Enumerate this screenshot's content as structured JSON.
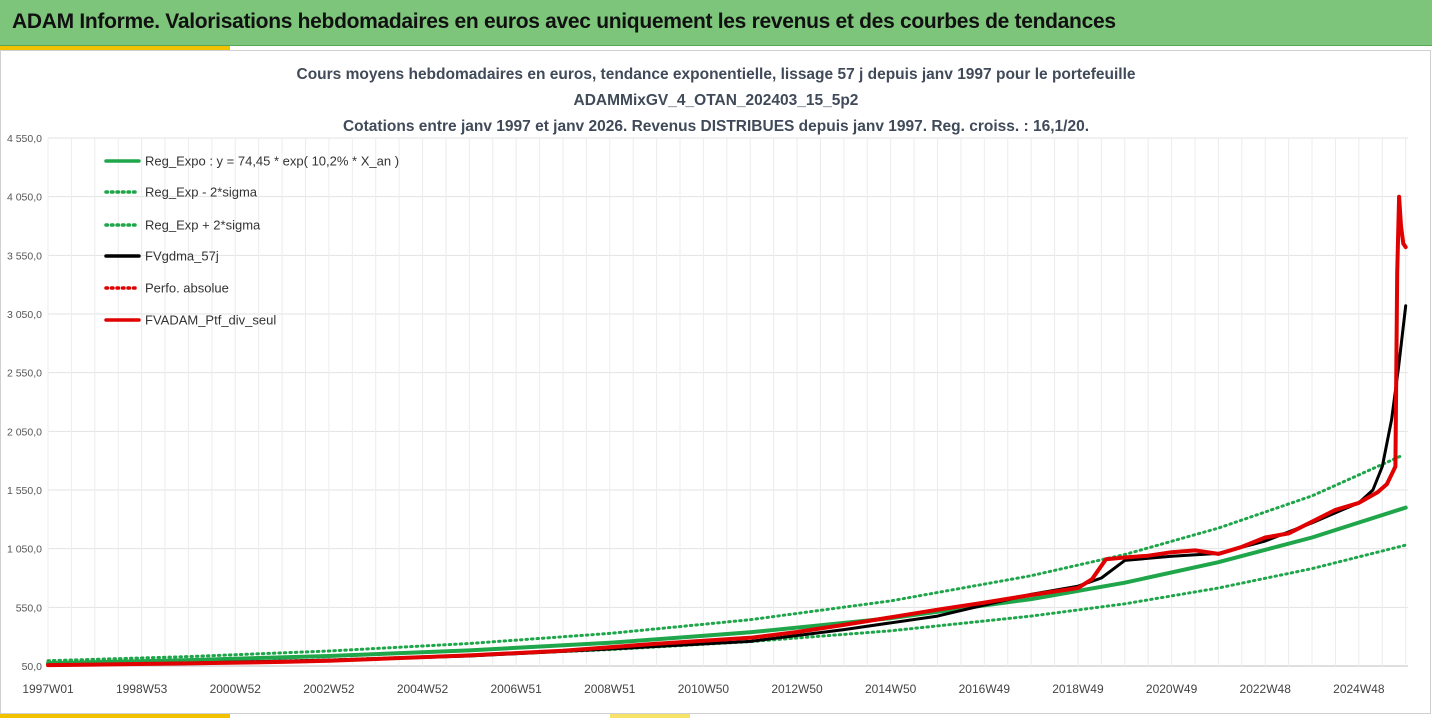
{
  "header": {
    "title": "ADAM Informe. Valorisations hebdomadaires en euros avec uniquement les revenus et des courbes de tendances"
  },
  "chart_data": {
    "type": "line",
    "title_lines": [
      "Cours moyens hebdomadaires  en euros, tendance exponentielle, lissage 57 j depuis janv 1997 pour le portefeuille",
      "ADAMMixGV_4_OTAN_202403_15_5p2",
      "Cotations entre janv 1997 et janv 2026. Revenus DISTRIBUES depuis janv 1997. Reg. croiss. : 16,1/20."
    ],
    "ylim": [
      50,
      4550
    ],
    "y_ticks": [
      "4 550,0",
      "4 050,0",
      "3 550,0",
      "3 050,0",
      "2 550,0",
      "2 050,0",
      "1 550,0",
      "1 050,0",
      "550,0",
      "50,0"
    ],
    "x_range_years": [
      1997.0,
      2026.05
    ],
    "x_ticks": [
      {
        "label": "1997W01",
        "year": 1997.0
      },
      {
        "label": "1998W53",
        "year": 1999.0
      },
      {
        "label": "2000W52",
        "year": 2001.0
      },
      {
        "label": "2002W52",
        "year": 2003.0
      },
      {
        "label": "2004W52",
        "year": 2005.0
      },
      {
        "label": "2006W51",
        "year": 2007.0
      },
      {
        "label": "2008W51",
        "year": 2009.0
      },
      {
        "label": "2010W50",
        "year": 2011.0
      },
      {
        "label": "2012W50",
        "year": 2013.0
      },
      {
        "label": "2014W50",
        "year": 2015.0
      },
      {
        "label": "2016W49",
        "year": 2017.0
      },
      {
        "label": "2018W49",
        "year": 2019.0
      },
      {
        "label": "2020W49",
        "year": 2021.0
      },
      {
        "label": "2022W48",
        "year": 2023.0
      },
      {
        "label": "2024W48",
        "year": 2025.0
      }
    ],
    "grid": true,
    "legend_position": "top-left",
    "series": [
      {
        "name": "Reg_Expo : y = 74,45 * exp( 10,2% *  X_an )",
        "color": "#1fa64a",
        "style": "solid",
        "x": [
          1997,
          2000,
          2003,
          2006,
          2009,
          2012,
          2015,
          2018,
          2020,
          2022,
          2024,
          2026
        ],
        "y": [
          74,
          100,
          135,
          183,
          248,
          337,
          457,
          620,
          760,
          935,
          1145,
          1400
        ]
      },
      {
        "name": "Reg_Exp - 2*sigma",
        "color": "#1fa64a",
        "style": "dotted",
        "x": [
          1997,
          2000,
          2003,
          2006,
          2009,
          2012,
          2015,
          2018,
          2020,
          2022,
          2024,
          2026
        ],
        "y": [
          55,
          75,
          102,
          140,
          190,
          258,
          350,
          475,
          580,
          715,
          880,
          1080
        ]
      },
      {
        "name": "Reg_Exp + 2*sigma",
        "color": "#1fa64a",
        "style": "dotted",
        "x": [
          1997,
          2000,
          2003,
          2006,
          2009,
          2012,
          2015,
          2018,
          2020,
          2022,
          2024,
          2025.9
        ],
        "y": [
          95,
          130,
          178,
          242,
          328,
          445,
          605,
          820,
          1000,
          1225,
          1500,
          1840
        ]
      },
      {
        "name": "FVgdma_57j",
        "color": "#000000",
        "style": "solid",
        "x": [
          1997,
          2000,
          2003,
          2006,
          2009,
          2012,
          2014,
          2016,
          2017,
          2018,
          2019,
          2019.5,
          2020,
          2021,
          2022,
          2023,
          2024,
          2024.7,
          2025,
          2025.3,
          2025.5,
          2025.7,
          2025.85,
          2026
        ],
        "y": [
          55,
          75,
          100,
          135,
          195,
          260,
          360,
          475,
          570,
          660,
          730,
          800,
          950,
          985,
          1010,
          1115,
          1270,
          1390,
          1440,
          1550,
          1750,
          2150,
          2600,
          3120
        ]
      },
      {
        "name": "Perfo. absolue",
        "color": "#e00000",
        "style": "dotted",
        "x": [],
        "y": []
      },
      {
        "name": "FVADAM_Ptf_div_seul",
        "color": "#e00000",
        "style": "solid",
        "x": [
          1997,
          1998,
          2000,
          2002,
          2003,
          2004,
          2006,
          2008,
          2009,
          2010,
          2012,
          2013,
          2014,
          2015,
          2016,
          2017,
          2018,
          2019,
          2019.3,
          2019.6,
          2020,
          2020.5,
          2021,
          2021.5,
          2022,
          2022.5,
          2023,
          2023.5,
          2024,
          2024.5,
          2025,
          2025.4,
          2025.6,
          2025.72,
          2025.78,
          2025.82,
          2025.86,
          2025.9,
          2025.95,
          2026
        ],
        "y": [
          58,
          62,
          72,
          85,
          95,
          110,
          140,
          180,
          210,
          240,
          290,
          340,
          400,
          465,
          530,
          590,
          655,
          715,
          790,
          960,
          975,
          990,
          1020,
          1035,
          1005,
          1065,
          1145,
          1180,
          1280,
          1380,
          1440,
          1530,
          1600,
          1700,
          1750,
          3400,
          4050,
          3800,
          3650,
          3620
        ]
      }
    ]
  }
}
